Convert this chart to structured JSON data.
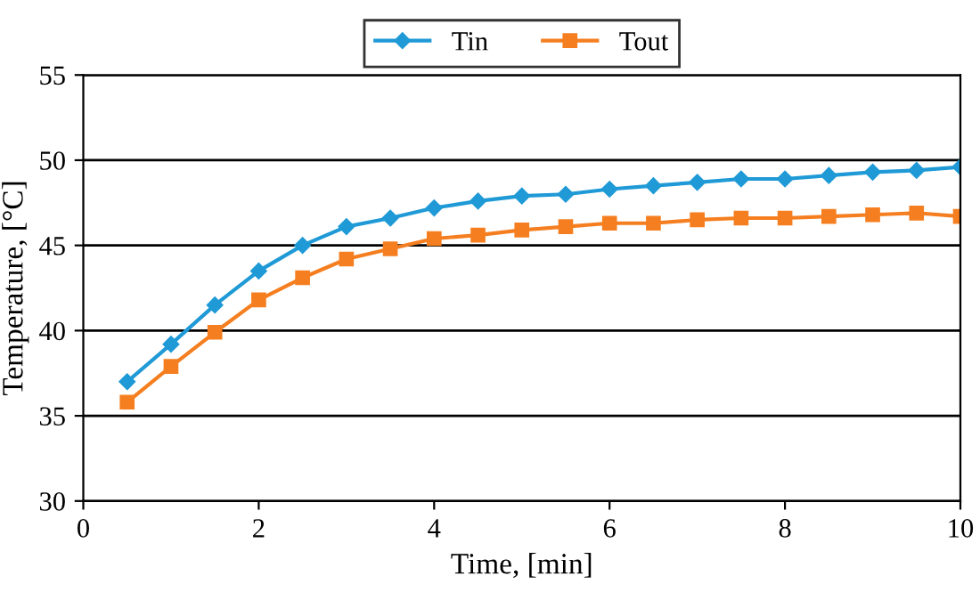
{
  "chart_data": {
    "type": "line",
    "xlabel": "Time, [min]",
    "ylabel": "Temperature, [°C]",
    "x": [
      0.5,
      1,
      1.5,
      2,
      2.5,
      3,
      3.5,
      4,
      4.5,
      5,
      5.5,
      6,
      6.5,
      7,
      7.5,
      8,
      8.5,
      9,
      9.5,
      10
    ],
    "series": [
      {
        "name": "Tin",
        "color": "#1f9ad6",
        "marker": "diamond",
        "values": [
          37.0,
          39.2,
          41.5,
          43.5,
          45.0,
          46.1,
          46.6,
          47.2,
          47.6,
          47.9,
          48.0,
          48.3,
          48.5,
          48.7,
          48.9,
          48.9,
          49.1,
          49.3,
          49.4,
          49.6
        ]
      },
      {
        "name": "Tout",
        "color": "#f57f20",
        "marker": "square",
        "values": [
          35.8,
          37.9,
          39.9,
          41.8,
          43.1,
          44.2,
          44.8,
          45.4,
          45.6,
          45.9,
          46.1,
          46.3,
          46.3,
          46.5,
          46.6,
          46.6,
          46.7,
          46.8,
          46.9,
          46.7
        ]
      }
    ],
    "xlim": [
      0,
      10
    ],
    "xticks": [
      0,
      2,
      4,
      6,
      8,
      10
    ],
    "ylim": [
      30,
      55
    ],
    "yticks": [
      30,
      35,
      40,
      45,
      50,
      55
    ],
    "grid": "y",
    "legend": "top",
    "line_style": "solid"
  }
}
